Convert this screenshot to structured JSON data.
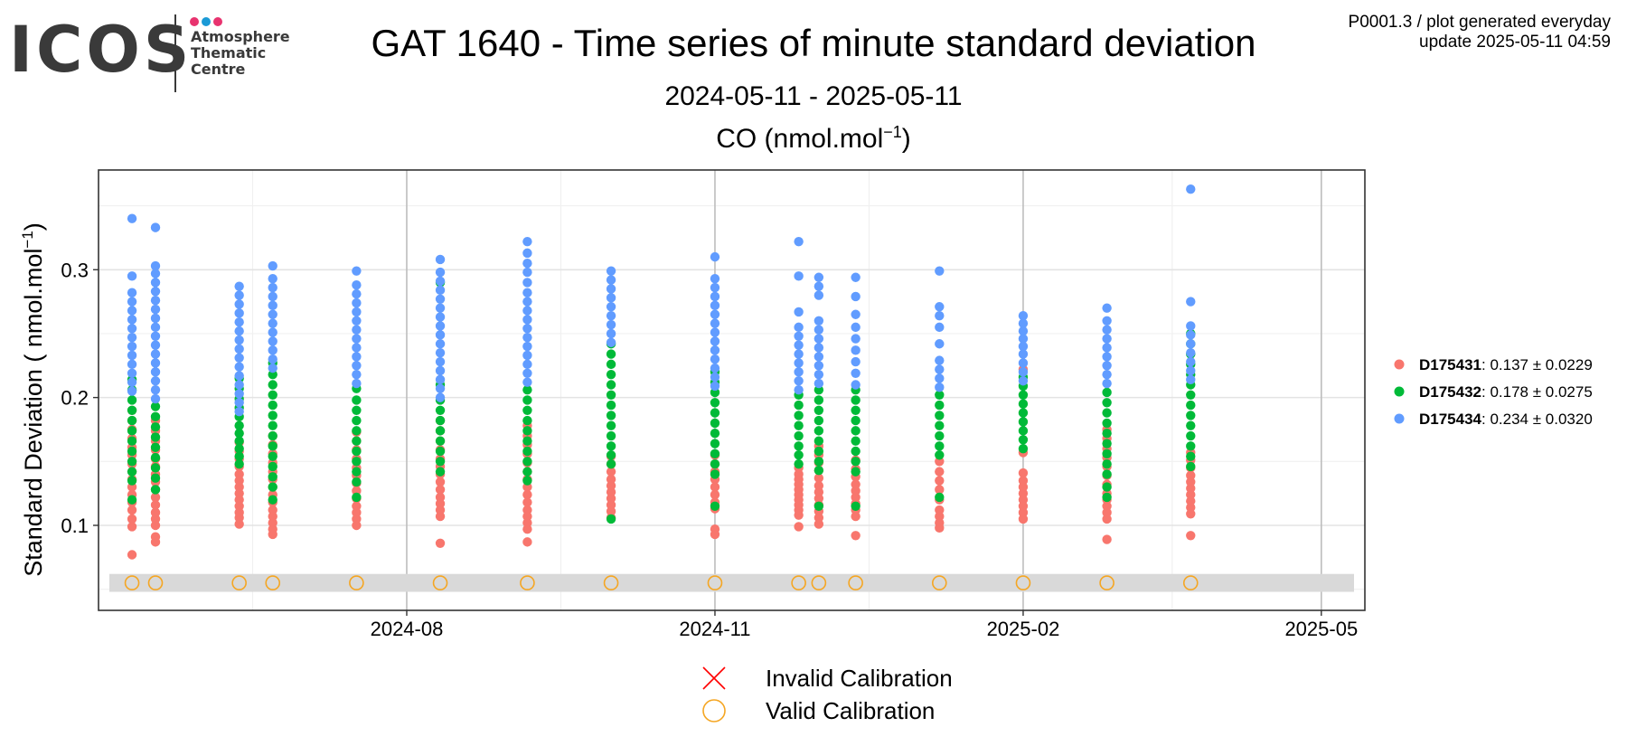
{
  "logo": {
    "word": "ICOS",
    "lines": [
      "Atmosphere",
      "Thematic",
      "Centre"
    ],
    "dot_colors": [
      "#e8336f",
      "#1b9ad6",
      "#e8336f"
    ]
  },
  "meta": {
    "line1": "P0001.3 / plot generated everyday",
    "line2": "update  2025-05-11 04:59"
  },
  "title": "GAT 1640 - Time series of minute standard deviation",
  "subtitle": "2024-05-11 - 2025-05-11",
  "panel": {
    "species": "CO (nmol.mol",
    "superscript": "−1",
    "close": ")"
  },
  "chart_data": {
    "type": "scatter",
    "title": "CO (nmol.mol-1)",
    "xlabel": "",
    "ylabel": "Standard Deviation ( nmol.mol-1)",
    "x_type": "date",
    "xlim": [
      "2024-05-01",
      "2025-05-14"
    ],
    "ylim": [
      0.0335,
      0.378
    ],
    "x_ticks": [
      {
        "date": "2024-08-01",
        "label": "2024-08"
      },
      {
        "date": "2024-11-01",
        "label": "2024-11"
      },
      {
        "date": "2025-02-01",
        "label": "2025-02"
      },
      {
        "date": "2025-05-01",
        "label": "2025-05"
      }
    ],
    "y_ticks": [
      0.1,
      0.2,
      0.3
    ],
    "grid": true,
    "legend_position": "right",
    "calibration_band": {
      "y_range": [
        0.048,
        0.062
      ],
      "color": "#d9d9d9"
    },
    "series": [
      {
        "name": "D175431",
        "stats": ": 0.137 ± 0.0229",
        "color": "#f8766d",
        "clusters": [
          {
            "date": "2024-05-11",
            "values": [
              0.077,
              0.099,
              0.105,
              0.112,
              0.118,
              0.124,
              0.13,
              0.136,
              0.142,
              0.148,
              0.155,
              0.161,
              0.168,
              0.175,
              0.182,
              0.19
            ]
          },
          {
            "date": "2024-05-18",
            "values": [
              0.087,
              0.091,
              0.1,
              0.105,
              0.11,
              0.116,
              0.122,
              0.128,
              0.134,
              0.14,
              0.146,
              0.152,
              0.159,
              0.166,
              0.174,
              0.182
            ]
          },
          {
            "date": "2024-06-12",
            "values": [
              0.101,
              0.106,
              0.11,
              0.115,
              0.12,
              0.125,
              0.13,
              0.135,
              0.14,
              0.146,
              0.152,
              0.158,
              0.165
            ]
          },
          {
            "date": "2024-06-22",
            "values": [
              0.093,
              0.097,
              0.102,
              0.107,
              0.112,
              0.118,
              0.124,
              0.13,
              0.136,
              0.142,
              0.149,
              0.156,
              0.163,
              0.17
            ]
          },
          {
            "date": "2024-07-17",
            "values": [
              0.1,
              0.105,
              0.11,
              0.115,
              0.121,
              0.127,
              0.133,
              0.139,
              0.145,
              0.152,
              0.159,
              0.166,
              0.173
            ]
          },
          {
            "date": "2024-08-11",
            "values": [
              0.086,
              0.107,
              0.112,
              0.117,
              0.122,
              0.128,
              0.134,
              0.14,
              0.146,
              0.152,
              0.159,
              0.166,
              0.174,
              0.182
            ]
          },
          {
            "date": "2024-09-06",
            "values": [
              0.087,
              0.097,
              0.102,
              0.107,
              0.112,
              0.118,
              0.124,
              0.13,
              0.136,
              0.142,
              0.149,
              0.156,
              0.163,
              0.17,
              0.178
            ]
          },
          {
            "date": "2024-10-01",
            "values": [
              0.106,
              0.111,
              0.116,
              0.121,
              0.126,
              0.131,
              0.136,
              0.142,
              0.148,
              0.154
            ]
          },
          {
            "date": "2024-11-01",
            "values": [
              0.093,
              0.097,
              0.113,
              0.118,
              0.124,
              0.13,
              0.136,
              0.142,
              0.148,
              0.155
            ]
          },
          {
            "date": "2024-11-26",
            "values": [
              0.099,
              0.108,
              0.112,
              0.116,
              0.12,
              0.124,
              0.128,
              0.132,
              0.136,
              0.14,
              0.145
            ]
          },
          {
            "date": "2024-12-02",
            "values": [
              0.101,
              0.106,
              0.111,
              0.116,
              0.121,
              0.126,
              0.131,
              0.137,
              0.143,
              0.149,
              0.155,
              0.162
            ]
          },
          {
            "date": "2024-12-13",
            "values": [
              0.092,
              0.107,
              0.112,
              0.117,
              0.122,
              0.127,
              0.132,
              0.138,
              0.144,
              0.151
            ]
          },
          {
            "date": "2025-01-07",
            "values": [
              0.098,
              0.102,
              0.107,
              0.112,
              0.12,
              0.128,
              0.135,
              0.142,
              0.15
            ]
          },
          {
            "date": "2025-02-01",
            "values": [
              0.105,
              0.11,
              0.115,
              0.12,
              0.125,
              0.13,
              0.135,
              0.141,
              0.157,
              0.222
            ]
          },
          {
            "date": "2025-02-26",
            "values": [
              0.089,
              0.105,
              0.11,
              0.115,
              0.12,
              0.125,
              0.132,
              0.139,
              0.146,
              0.153,
              0.16,
              0.168,
              0.175
            ]
          },
          {
            "date": "2025-03-23",
            "values": [
              0.092,
              0.109,
              0.114,
              0.119,
              0.124,
              0.129,
              0.134,
              0.139,
              0.145,
              0.151,
              0.157
            ]
          }
        ]
      },
      {
        "name": "D175432",
        "stats": ": 0.178 ± 0.0275",
        "color": "#00ba38",
        "clusters": [
          {
            "date": "2024-05-11",
            "values": [
              0.12,
              0.135,
              0.142,
              0.15,
              0.158,
              0.166,
              0.174,
              0.182,
              0.19,
              0.198,
              0.206,
              0.214
            ]
          },
          {
            "date": "2024-05-18",
            "values": [
              0.128,
              0.137,
              0.145,
              0.153,
              0.161,
              0.169,
              0.177,
              0.185,
              0.193
            ]
          },
          {
            "date": "2024-06-12",
            "values": [
              0.148,
              0.154,
              0.16,
              0.166,
              0.172,
              0.178,
              0.185,
              0.192,
              0.199,
              0.207,
              0.215
            ]
          },
          {
            "date": "2024-06-22",
            "values": [
              0.12,
              0.13,
              0.138,
              0.146,
              0.154,
              0.162,
              0.17,
              0.178,
              0.186,
              0.194,
              0.202,
              0.21,
              0.218,
              0.227
            ]
          },
          {
            "date": "2024-07-17",
            "values": [
              0.122,
              0.134,
              0.142,
              0.15,
              0.158,
              0.166,
              0.174,
              0.182,
              0.19,
              0.198,
              0.207
            ]
          },
          {
            "date": "2024-08-11",
            "values": [
              0.142,
              0.15,
              0.158,
              0.166,
              0.174,
              0.182,
              0.19,
              0.198,
              0.21,
              0.29
            ]
          },
          {
            "date": "2024-09-06",
            "values": [
              0.135,
              0.142,
              0.15,
              0.158,
              0.166,
              0.174,
              0.182,
              0.19,
              0.198,
              0.206
            ]
          },
          {
            "date": "2024-10-01",
            "values": [
              0.105,
              0.148,
              0.155,
              0.162,
              0.17,
              0.178,
              0.186,
              0.194,
              0.202,
              0.21,
              0.218,
              0.226,
              0.234,
              0.242
            ]
          },
          {
            "date": "2024-11-01",
            "values": [
              0.115,
              0.14,
              0.148,
              0.156,
              0.164,
              0.172,
              0.18,
              0.188,
              0.196,
              0.204,
              0.212,
              0.22
            ]
          },
          {
            "date": "2024-11-26",
            "values": [
              0.148,
              0.155,
              0.162,
              0.17,
              0.178,
              0.186,
              0.194,
              0.202
            ]
          },
          {
            "date": "2024-12-02",
            "values": [
              0.115,
              0.143,
              0.15,
              0.158,
              0.166,
              0.174,
              0.182,
              0.19,
              0.198,
              0.206
            ]
          },
          {
            "date": "2024-12-13",
            "values": [
              0.115,
              0.142,
              0.15,
              0.158,
              0.166,
              0.174,
              0.182,
              0.19,
              0.198,
              0.206
            ]
          },
          {
            "date": "2025-01-07",
            "values": [
              0.122,
              0.155,
              0.162,
              0.17,
              0.178,
              0.186,
              0.194,
              0.202
            ]
          },
          {
            "date": "2025-02-01",
            "values": [
              0.16,
              0.167,
              0.174,
              0.181,
              0.188,
              0.195,
              0.202,
              0.209,
              0.216
            ]
          },
          {
            "date": "2025-02-26",
            "values": [
              0.122,
              0.13,
              0.14,
              0.148,
              0.156,
              0.164,
              0.172,
              0.18,
              0.188,
              0.196,
              0.204
            ]
          },
          {
            "date": "2025-03-23",
            "values": [
              0.146,
              0.154,
              0.162,
              0.17,
              0.178,
              0.186,
              0.194,
              0.202,
              0.21,
              0.218,
              0.226,
              0.234,
              0.242,
              0.25
            ]
          }
        ]
      },
      {
        "name": "D175434",
        "stats": ": 0.234 ± 0.0320",
        "color": "#619cff",
        "clusters": [
          {
            "date": "2024-05-11",
            "values": [
              0.34,
              0.295,
              0.282,
              0.275,
              0.268,
              0.261,
              0.254,
              0.247,
              0.24,
              0.233,
              0.226,
              0.219,
              0.212,
              0.205
            ]
          },
          {
            "date": "2024-05-18",
            "values": [
              0.333,
              0.303,
              0.297,
              0.29,
              0.283,
              0.276,
              0.269,
              0.262,
              0.255,
              0.248,
              0.241,
              0.234,
              0.227,
              0.22,
              0.213,
              0.206,
              0.199
            ]
          },
          {
            "date": "2024-06-12",
            "values": [
              0.287,
              0.28,
              0.273,
              0.266,
              0.259,
              0.252,
              0.245,
              0.238,
              0.231,
              0.224,
              0.217,
              0.21,
              0.203,
              0.196,
              0.189
            ]
          },
          {
            "date": "2024-06-22",
            "values": [
              0.303,
              0.293,
              0.286,
              0.279,
              0.272,
              0.265,
              0.258,
              0.251,
              0.244,
              0.237,
              0.23,
              0.223
            ]
          },
          {
            "date": "2024-07-17",
            "values": [
              0.299,
              0.288,
              0.281,
              0.274,
              0.267,
              0.26,
              0.253,
              0.246,
              0.239,
              0.232,
              0.225,
              0.218,
              0.211
            ]
          },
          {
            "date": "2024-08-11",
            "values": [
              0.308,
              0.298,
              0.291,
              0.284,
              0.277,
              0.27,
              0.263,
              0.256,
              0.249,
              0.242,
              0.235,
              0.228,
              0.221,
              0.214,
              0.207,
              0.2
            ]
          },
          {
            "date": "2024-09-06",
            "values": [
              0.322,
              0.313,
              0.305,
              0.298,
              0.29,
              0.282,
              0.275,
              0.268,
              0.261,
              0.254,
              0.247,
              0.24,
              0.233,
              0.226,
              0.219,
              0.212
            ]
          },
          {
            "date": "2024-10-01",
            "values": [
              0.299,
              0.292,
              0.285,
              0.278,
              0.271,
              0.264,
              0.257,
              0.25,
              0.243
            ]
          },
          {
            "date": "2024-11-01",
            "values": [
              0.31,
              0.293,
              0.286,
              0.279,
              0.272,
              0.265,
              0.258,
              0.251,
              0.244,
              0.237,
              0.23,
              0.223,
              0.216,
              0.209
            ]
          },
          {
            "date": "2024-11-26",
            "values": [
              0.322,
              0.295,
              0.267,
              0.255,
              0.248,
              0.241,
              0.234,
              0.227,
              0.22,
              0.213,
              0.206
            ]
          },
          {
            "date": "2024-12-02",
            "values": [
              0.294,
              0.287,
              0.28,
              0.26,
              0.253,
              0.246,
              0.239,
              0.232,
              0.225,
              0.218,
              0.211
            ]
          },
          {
            "date": "2024-12-13",
            "values": [
              0.294,
              0.279,
              0.265,
              0.255,
              0.246,
              0.237,
              0.228,
              0.219,
              0.21
            ]
          },
          {
            "date": "2025-01-07",
            "values": [
              0.299,
              0.271,
              0.264,
              0.255,
              0.242,
              0.229,
              0.222,
              0.215,
              0.208
            ]
          },
          {
            "date": "2025-02-01",
            "values": [
              0.264,
              0.258,
              0.252,
              0.246,
              0.24,
              0.234,
              0.227,
              0.22,
              0.213
            ]
          },
          {
            "date": "2025-02-26",
            "values": [
              0.27,
              0.26,
              0.253,
              0.246,
              0.239,
              0.232,
              0.225,
              0.218,
              0.211
            ]
          },
          {
            "date": "2025-03-23",
            "values": [
              0.363,
              0.275,
              0.256,
              0.249,
              0.242,
              0.235,
              0.228,
              0.221,
              0.214
            ]
          }
        ]
      }
    ],
    "calibrations": {
      "valid": [
        "2024-05-11",
        "2024-05-18",
        "2024-06-12",
        "2024-06-22",
        "2024-07-17",
        "2024-08-11",
        "2024-09-06",
        "2024-10-01",
        "2024-11-01",
        "2024-11-26",
        "2024-12-02",
        "2024-12-13",
        "2025-01-07",
        "2025-02-01",
        "2025-02-26",
        "2025-03-23"
      ],
      "invalid": [],
      "y": 0.055,
      "valid_color": "#f5a623",
      "invalid_color": "#ff0000"
    },
    "bottom_legend": [
      {
        "label": "Invalid Calibration",
        "marker": "x",
        "color": "#ff0000"
      },
      {
        "label": "Valid Calibration",
        "marker": "circle-open",
        "color": "#f5a623"
      }
    ]
  }
}
